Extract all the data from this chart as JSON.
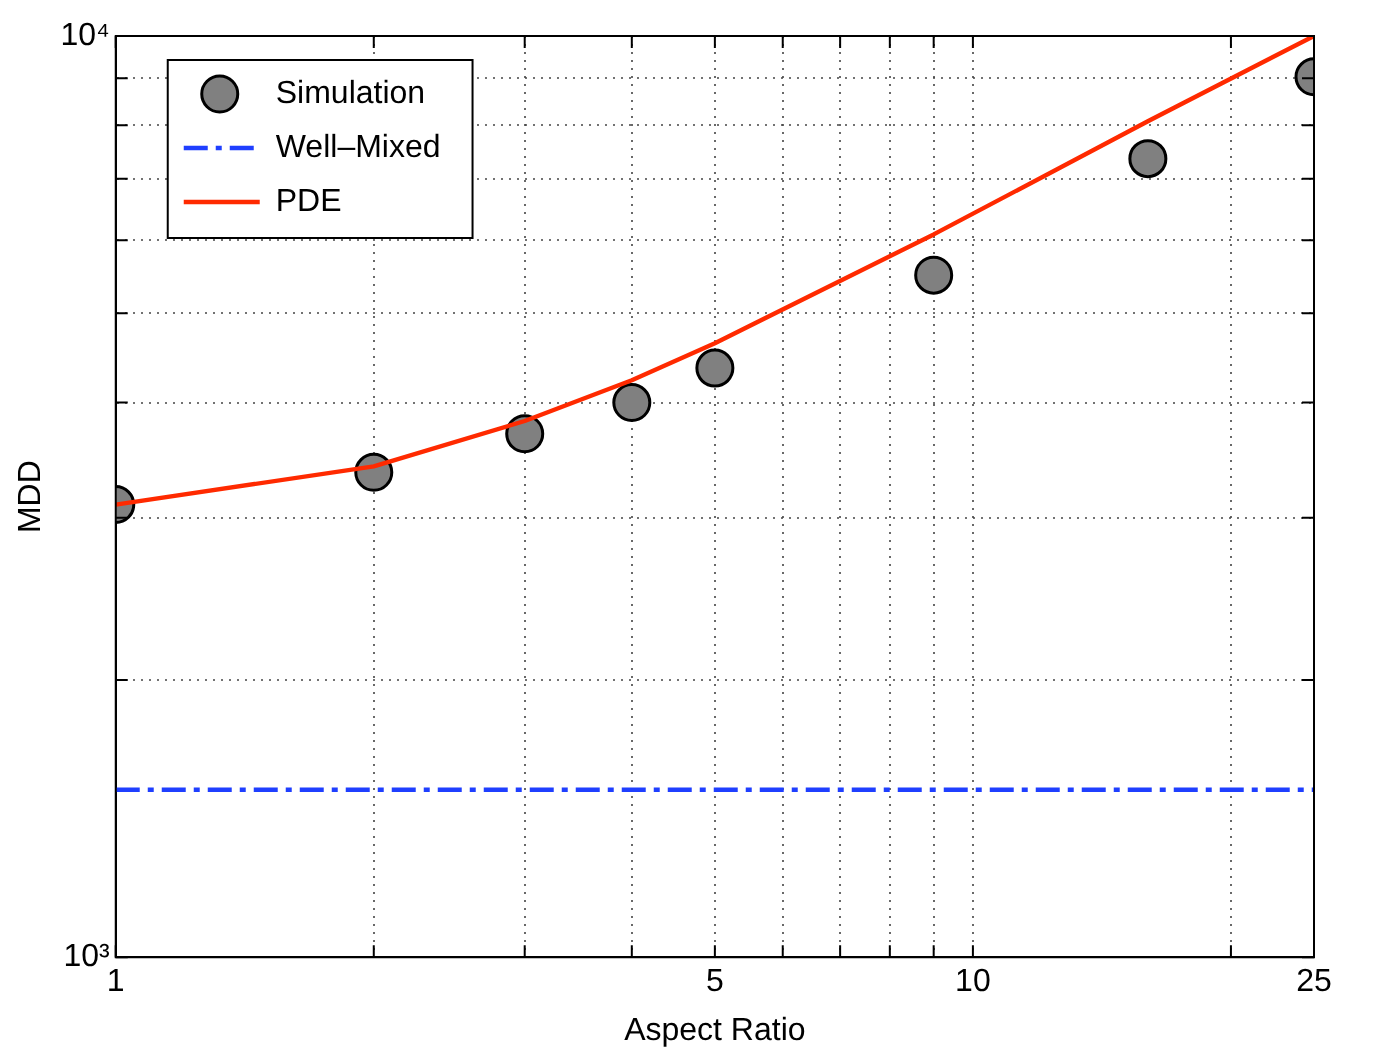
{
  "chart_data": {
    "type": "line",
    "xlabel": "Aspect Ratio",
    "ylabel": "MDD",
    "log": "xy",
    "grid": true,
    "legend": "top left",
    "xlim": [
      1,
      25
    ],
    "ylim": [
      1000,
      10000
    ],
    "xticks": [
      1,
      {
        "value": 2,
        "label": null
      },
      {
        "value": 3,
        "label": null
      },
      {
        "value": 4,
        "label": null
      },
      5,
      {
        "value": 6,
        "label": null
      },
      {
        "value": 7,
        "label": null
      },
      {
        "value": 8,
        "label": null
      },
      {
        "value": 9,
        "label": null
      },
      10,
      {
        "value": 20,
        "label": null
      },
      25
    ],
    "yticks": [
      {
        "value": 1000,
        "label": "10³"
      },
      {
        "value": 2000,
        "label": null
      },
      {
        "value": 3000,
        "label": null
      },
      {
        "value": 4000,
        "label": null
      },
      {
        "value": 5000,
        "label": null
      },
      {
        "value": 6000,
        "label": null
      },
      {
        "value": 7000,
        "label": null
      },
      {
        "value": 8000,
        "label": null
      },
      {
        "value": 9000,
        "label": null
      },
      {
        "value": 10000,
        "label": "10⁴"
      }
    ],
    "series": [
      {
        "name": "Simulation",
        "type": "scatter",
        "marker": "circle",
        "color": "#808080",
        "x": [
          1,
          2,
          3,
          4,
          5,
          9,
          16,
          25
        ],
        "values": [
          3100,
          3360,
          3700,
          4000,
          4360,
          5500,
          7360,
          9030
        ]
      },
      {
        "name": "Well–Mixed",
        "line_style": "dashed",
        "color": "#1f3fff",
        "x": [
          1,
          25
        ],
        "values": [
          1520,
          1520
        ]
      },
      {
        "name": "PDE",
        "line_style": "solid",
        "color": "#ff2a00",
        "x": [
          1,
          2,
          3,
          4,
          5,
          9,
          16,
          25
        ],
        "values": [
          3100,
          3410,
          3820,
          4230,
          4640,
          6090,
          8080,
          10000
        ]
      }
    ]
  }
}
